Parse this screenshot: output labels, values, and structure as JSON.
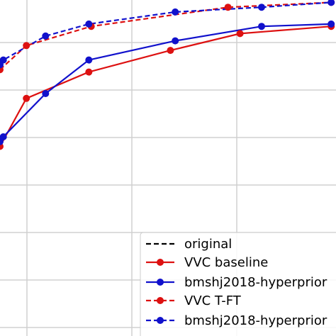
{
  "chart_data": {
    "type": "line",
    "title": "",
    "xlabel": "",
    "ylabel": "",
    "xlim": [
      0,
      7
    ],
    "ylim": [
      0,
      7
    ],
    "grid": true,
    "legend_placement": "bottom-right",
    "series": [
      {
        "name": "original",
        "color": "#000000",
        "dash": true,
        "marker": false,
        "x": [],
        "y": []
      },
      {
        "name": "VVC baseline",
        "color": "#dd1111",
        "dash": false,
        "marker": true,
        "x": [
          0.0,
          0.55,
          1.85,
          3.55,
          5.0,
          6.9
        ],
        "y": [
          3.95,
          4.95,
          5.5,
          5.95,
          6.3,
          6.45
        ]
      },
      {
        "name": "bmshj2018-hyperprior",
        "color": "#1111cc",
        "dash": false,
        "marker": true,
        "x": [
          0.0,
          0.07,
          0.95,
          1.85,
          3.65,
          5.45,
          6.9
        ],
        "y": [
          4.05,
          4.15,
          5.05,
          5.75,
          6.15,
          6.45,
          6.5
        ]
      },
      {
        "name": "VVC T-FT",
        "color": "#dd1111",
        "dash": true,
        "marker": true,
        "x": [
          0.0,
          0.55,
          1.9,
          4.75,
          6.9
        ],
        "y": [
          5.55,
          6.05,
          6.45,
          6.85,
          6.95
        ]
      },
      {
        "name": "bmshj2018-hyperprior",
        "color": "#1111cc",
        "dash": true,
        "marker": true,
        "x": [
          0.0,
          0.07,
          0.95,
          1.85,
          3.65,
          5.45,
          6.9
        ],
        "y": [
          5.65,
          5.75,
          6.25,
          6.5,
          6.75,
          6.85,
          6.95
        ]
      }
    ]
  }
}
